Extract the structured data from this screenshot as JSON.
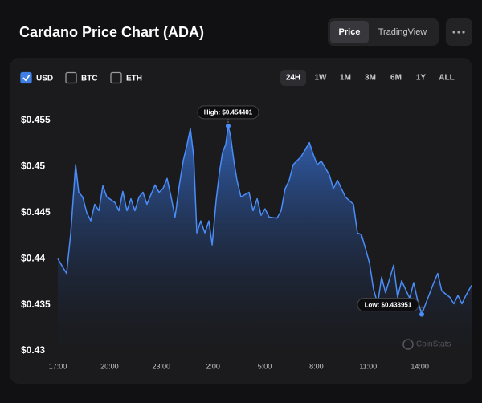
{
  "header": {
    "title": "Cardano Price Chart (ADA)",
    "tabs": [
      "Price",
      "TradingView"
    ],
    "active_tab": 0
  },
  "currencies": [
    {
      "label": "USD",
      "checked": true
    },
    {
      "label": "BTC",
      "checked": false
    },
    {
      "label": "ETH",
      "checked": false
    }
  ],
  "ranges": [
    "24H",
    "1W",
    "1M",
    "3M",
    "6M",
    "1Y",
    "ALL"
  ],
  "active_range": 0,
  "watermark": "CoinStats",
  "chart_data": {
    "type": "line",
    "annotations": {
      "high": "High: $0.454401",
      "low": "Low: $0.433951"
    },
    "x": [
      0,
      0.28,
      0.51,
      0.75,
      1.03,
      1.21,
      1.44,
      1.68,
      1.91,
      2.14,
      2.38,
      2.61,
      2.84,
      3.31,
      3.54,
      3.77,
      4.01,
      4.24,
      4.47,
      4.71,
      4.94,
      5.17,
      5.41,
      5.64,
      5.87,
      6.1,
      6.34,
      6.57,
      6.8,
      7.04,
      7.27,
      7.5,
      7.69,
      7.88,
      8.06,
      8.29,
      8.53,
      8.76,
      8.95,
      9.18,
      9.37,
      9.55,
      9.74,
      9.88,
      10.02,
      10.21,
      10.39,
      10.62,
      11.09,
      11.32,
      11.56,
      11.79,
      12.02,
      12.26,
      12.72,
      12.95,
      13.19,
      13.42,
      13.65,
      14.12,
      14.59,
      14.82,
      15.05,
      15.28,
      15.75,
      15.98,
      16.22,
      16.68,
      17.15,
      17.38,
      17.61,
      17.85,
      18.08,
      18.31,
      18.55,
      18.78,
      19.01,
      19.48,
      19.71,
      19.94,
      20.41,
      20.64,
      20.88,
      21.11,
      21.34,
      21.81,
      22.04,
      22.27,
      22.74,
      22.97,
      23.21,
      23.44,
      23.67,
      24
    ],
    "series": [
      {
        "name": "USD",
        "color": "#4a8df8",
        "values": [
          0.44,
          0.4391,
          0.4384,
          0.4428,
          0.4502,
          0.4472,
          0.4467,
          0.445,
          0.4441,
          0.4459,
          0.4452,
          0.4479,
          0.4467,
          0.4461,
          0.4452,
          0.4473,
          0.4452,
          0.4465,
          0.4452,
          0.4467,
          0.4472,
          0.4459,
          0.447,
          0.448,
          0.4472,
          0.4476,
          0.4487,
          0.4467,
          0.4445,
          0.4479,
          0.4506,
          0.4524,
          0.4541,
          0.4511,
          0.4428,
          0.4441,
          0.4428,
          0.4441,
          0.4415,
          0.4463,
          0.4493,
          0.4515,
          0.4524,
          0.454401,
          0.4533,
          0.4506,
          0.4485,
          0.4467,
          0.4472,
          0.4452,
          0.4465,
          0.4447,
          0.4454,
          0.4445,
          0.4444,
          0.4452,
          0.4476,
          0.4485,
          0.4502,
          0.4511,
          0.4526,
          0.4513,
          0.4502,
          0.4506,
          0.4491,
          0.4476,
          0.4485,
          0.4467,
          0.4459,
          0.4428,
          0.4426,
          0.4411,
          0.4395,
          0.4367,
          0.4351,
          0.438,
          0.4363,
          0.4393,
          0.4358,
          0.4376,
          0.4357,
          0.4374,
          0.4354,
          0.433951,
          0.4351,
          0.4374,
          0.4384,
          0.4365,
          0.4358,
          0.4351,
          0.436,
          0.4351,
          0.436,
          0.4371
        ]
      }
    ],
    "xlim": [
      0,
      24
    ],
    "xticks": [
      {
        "value": 0,
        "label": "17:00"
      },
      {
        "value": 3,
        "label": "20:00"
      },
      {
        "value": 6,
        "label": "23:00"
      },
      {
        "value": 9,
        "label": "2:00"
      },
      {
        "value": 12,
        "label": "5:00"
      },
      {
        "value": 15,
        "label": "8:00"
      },
      {
        "value": 18,
        "label": "11:00"
      },
      {
        "value": 21,
        "label": "14:00"
      }
    ],
    "ylim": [
      0.43,
      0.455
    ],
    "yticks": [
      {
        "value": 0.43,
        "label": "$0.43"
      },
      {
        "value": 0.435,
        "label": "$0.435"
      },
      {
        "value": 0.44,
        "label": "$0.44"
      },
      {
        "value": 0.445,
        "label": "$0.445"
      },
      {
        "value": 0.45,
        "label": "$0.45"
      },
      {
        "value": 0.455,
        "label": "$0.455"
      }
    ],
    "grid": false
  }
}
